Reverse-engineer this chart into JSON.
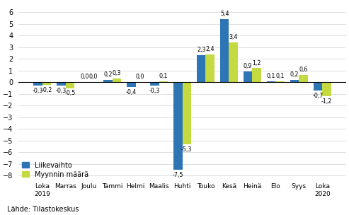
{
  "categories": [
    "Loka\n2019",
    "Marras",
    "Joulu",
    "Tammi",
    "Helmi",
    "Maalis",
    "Huhti",
    "Touko",
    "Kesä",
    "Heinä",
    "Elo",
    "Syys",
    "Loka\n2020"
  ],
  "liikevaihto": [
    -0.3,
    -0.3,
    0.0,
    0.2,
    -0.4,
    -0.3,
    -7.5,
    2.3,
    5.4,
    0.9,
    0.1,
    0.2,
    -0.7
  ],
  "myynnin_maara": [
    -0.2,
    -0.5,
    0.0,
    0.3,
    0.0,
    0.1,
    -5.3,
    2.4,
    3.4,
    1.2,
    0.1,
    0.6,
    -1.2
  ],
  "color_liikevaihto": "#2E75B6",
  "color_myynnin_maara": "#C5D940",
  "legend_liikevaihto": "Liikevaihto",
  "legend_myynnin_maara": "Myynnin määrä",
  "ylim": [
    -8.5,
    6.8
  ],
  "yticks": [
    -8,
    -7,
    -6,
    -5,
    -4,
    -3,
    -2,
    -1,
    0,
    1,
    2,
    3,
    4,
    5,
    6
  ],
  "source": "Lähde: Tilastokeskus",
  "bar_width": 0.38,
  "label_fontsize": 5.8,
  "tick_fontsize": 7.0,
  "legend_fontsize": 7.0
}
